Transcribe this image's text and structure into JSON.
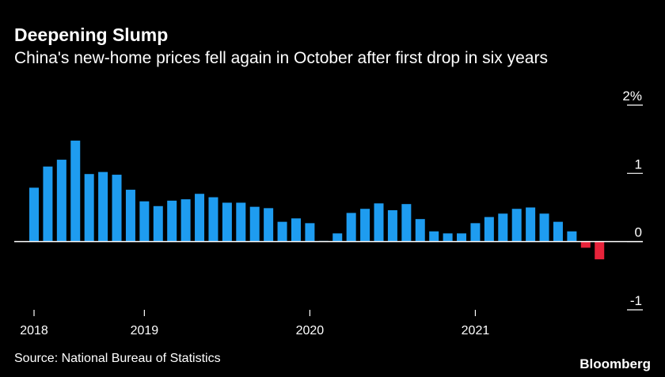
{
  "chart_data": {
    "type": "bar",
    "title": "Deepening Slump",
    "subtitle": "China's new-home prices fell again in October after first drop in six years",
    "source": "Source: National Bureau of Statistics",
    "brand": "Bloomberg",
    "categories": [
      "2018",
      null,
      null,
      null,
      null,
      null,
      null,
      null,
      "2019",
      null,
      null,
      null,
      null,
      null,
      null,
      null,
      null,
      null,
      null,
      null,
      "2020",
      null,
      null,
      null,
      null,
      null,
      null,
      null,
      null,
      null,
      null,
      null,
      "2021",
      null,
      null,
      null,
      null,
      null,
      null,
      null,
      null,
      null
    ],
    "values": [
      0.79,
      1.1,
      1.2,
      1.48,
      0.99,
      1.02,
      0.98,
      0.76,
      0.59,
      0.52,
      0.6,
      0.62,
      0.7,
      0.65,
      0.57,
      0.57,
      0.51,
      0.49,
      0.29,
      0.34,
      0.27,
      0.01,
      0.12,
      0.42,
      0.48,
      0.56,
      0.46,
      0.55,
      0.33,
      0.15,
      0.12,
      0.12,
      0.27,
      0.36,
      0.41,
      0.48,
      0.5,
      0.41,
      0.29,
      0.15,
      -0.09,
      -0.26
    ],
    "color": "#1e9cf0",
    "negative_color": "#e8233a",
    "ylim": [
      -1,
      2
    ],
    "yticks": [
      {
        "value": 2,
        "label": "2%"
      },
      1,
      0,
      -1
    ]
  }
}
